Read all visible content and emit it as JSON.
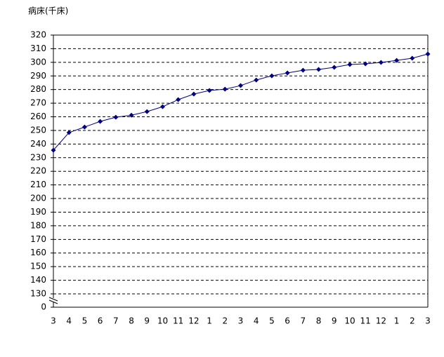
{
  "chart_data": {
    "type": "line",
    "y_axis_label": "病床(千床)",
    "categories": [
      "3",
      "4",
      "5",
      "6",
      "7",
      "8",
      "9",
      "10",
      "11",
      "12",
      "1",
      "2",
      "3",
      "4",
      "5",
      "6",
      "7",
      "8",
      "9",
      "10",
      "11",
      "12",
      "1",
      "2",
      "3"
    ],
    "series": [
      {
        "color": "#000080",
        "values": [
          235.5,
          248.4,
          252.5,
          256.6,
          259.7,
          261.2,
          263.8,
          267.4,
          272.6,
          276.7,
          279.3,
          280.3,
          282.9,
          287,
          290.1,
          292.2,
          294.2,
          294.8,
          296.3,
          298.4,
          298.9,
          299.9,
          301.4,
          303,
          306.1
        ]
      }
    ],
    "ylim": [
      130,
      320
    ],
    "yticks": [
      0,
      130,
      140,
      150,
      160,
      170,
      180,
      190,
      200,
      210,
      220,
      230,
      240,
      250,
      260,
      270,
      280,
      290,
      300,
      310,
      320
    ],
    "axis_break": true,
    "grid": true
  }
}
